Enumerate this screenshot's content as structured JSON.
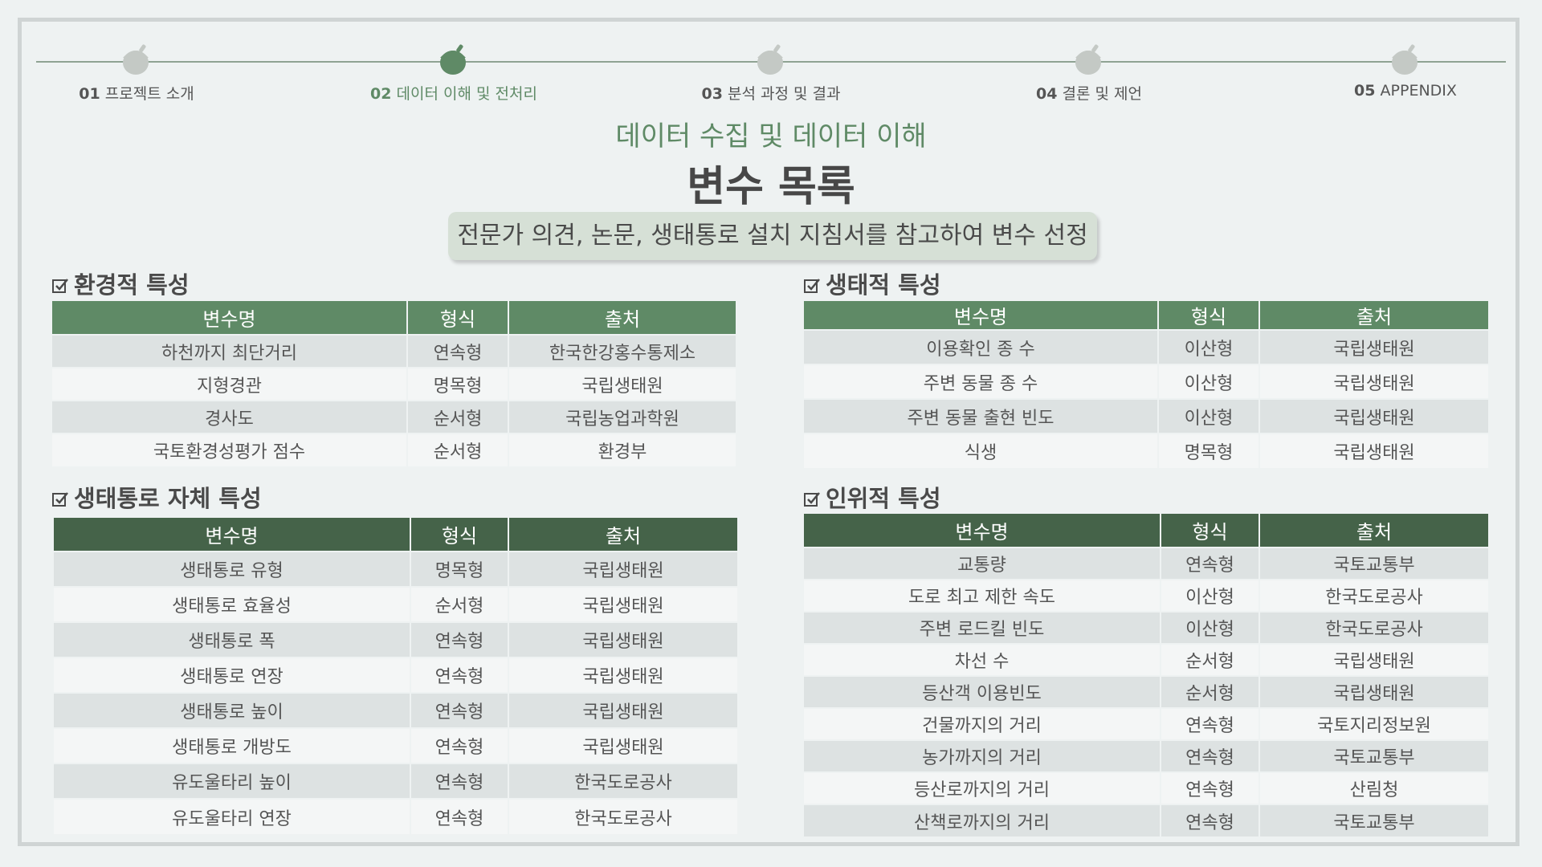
{
  "nav": {
    "steps": [
      {
        "num": "01",
        "label": "프로젝트 소개",
        "active": false
      },
      {
        "num": "02",
        "label": "데이터 이해 및 전처리",
        "active": true
      },
      {
        "num": "03",
        "label": "분석 과정 및 결과",
        "active": false
      },
      {
        "num": "04",
        "label": "결론 및 제언",
        "active": false
      },
      {
        "num": "05",
        "label": "APPENDIX",
        "active": false
      }
    ],
    "active_color": "#5f8a66",
    "inactive_color": "#c4c9c5"
  },
  "header": {
    "subtitle": "데이터 수집 및 데이터 이해",
    "title": "변수 목록",
    "note": "전문가 의견, 논문, 생태통로 설치 지침서를 참고하여 변수 선정"
  },
  "columns": [
    "변수명",
    "형식",
    "출처"
  ],
  "sections": {
    "environmental": {
      "title": "환경적 특성",
      "rows": [
        [
          "하천까지 최단거리",
          "연속형",
          "한국한강홍수통제소"
        ],
        [
          "지형경관",
          "명목형",
          "국립생태원"
        ],
        [
          "경사도",
          "순서형",
          "국립농업과학원"
        ],
        [
          "국토환경성평가 점수",
          "순서형",
          "환경부"
        ]
      ]
    },
    "ecological": {
      "title": "생태적 특성",
      "rows": [
        [
          "이용확인 종 수",
          "이산형",
          "국립생태원"
        ],
        [
          "주변 동물 종 수",
          "이산형",
          "국립생태원"
        ],
        [
          "주변 동물 출현 빈도",
          "이산형",
          "국립생태원"
        ],
        [
          "식생",
          "명목형",
          "국립생태원"
        ]
      ]
    },
    "passage": {
      "title": "생태통로 자체 특성",
      "rows": [
        [
          "생태통로 유형",
          "명목형",
          "국립생태원"
        ],
        [
          "생태통로 효율성",
          "순서형",
          "국립생태원"
        ],
        [
          "생태통로 폭",
          "연속형",
          "국립생태원"
        ],
        [
          "생태통로 연장",
          "연속형",
          "국립생태원"
        ],
        [
          "생태통로 높이",
          "연속형",
          "국립생태원"
        ],
        [
          "생태통로 개방도",
          "연속형",
          "국립생태원"
        ],
        [
          "유도울타리 높이",
          "연속형",
          "한국도로공사"
        ],
        [
          "유도울타리 연장",
          "연속형",
          "한국도로공사"
        ]
      ]
    },
    "human": {
      "title": "인위적 특성",
      "rows": [
        [
          "교통량",
          "연속형",
          "국토교통부"
        ],
        [
          "도로 최고 제한 속도",
          "이산형",
          "한국도로공사"
        ],
        [
          "주변 로드킬 빈도",
          "이산형",
          "한국도로공사"
        ],
        [
          "차선 수",
          "순서형",
          "국립생태원"
        ],
        [
          "등산객 이용빈도",
          "순서형",
          "국립생태원"
        ],
        [
          "건물까지의 거리",
          "연속형",
          "국토지리정보원"
        ],
        [
          "농가까지의 거리",
          "연속형",
          "국토교통부"
        ],
        [
          "등산로까지의 거리",
          "연속형",
          "산림청"
        ],
        [
          "산책로까지의 거리",
          "연속형",
          "국토교통부"
        ]
      ]
    }
  }
}
